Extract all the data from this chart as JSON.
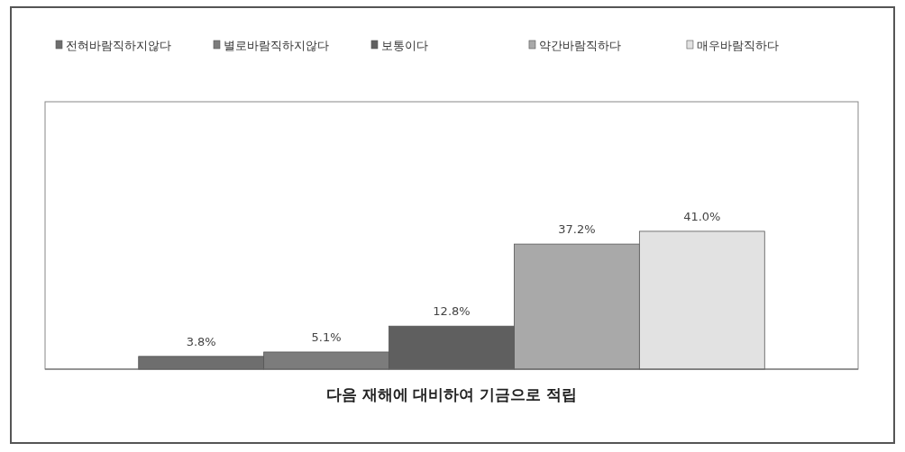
{
  "chart_data": {
    "type": "bar",
    "categories": [
      null
    ],
    "xlabel": "다음 재해에 대비하여 기금으로 적립",
    "legend": "top",
    "series": [
      {
        "name": "전혀바람직하지않다",
        "color": "#6e6e6e",
        "values": [
          3.8
        ],
        "value_labels": [
          "3.8%"
        ]
      },
      {
        "name": "별로바람직하지않다",
        "color": "#7c7c7c",
        "values": [
          5.1
        ],
        "value_labels": [
          "5.1%"
        ]
      },
      {
        "name": "보통이다",
        "color": "#5f5f5f",
        "values": [
          12.8
        ],
        "value_labels": [
          "12.8%"
        ]
      },
      {
        "name": "약간바람직하다",
        "color": "#a9a9a9",
        "values": [
          37.2
        ],
        "value_labels": [
          "37.2%"
        ]
      },
      {
        "name": "매우바람직하다",
        "color": "#e2e2e2",
        "values": [
          41.0
        ],
        "value_labels": [
          "41.0%"
        ]
      }
    ]
  }
}
